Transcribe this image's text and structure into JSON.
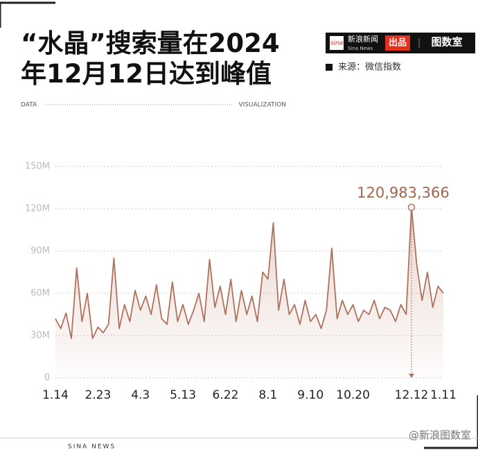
{
  "chart_data": {
    "type": "line",
    "title": "“水晶”搜索量在2024年12月12日达到峰值",
    "source": "来源：微信指数",
    "categories": [
      "1.14",
      null,
      null,
      null,
      null,
      null,
      null,
      null,
      "2.23",
      null,
      null,
      null,
      null,
      null,
      null,
      null,
      "4.3",
      null,
      null,
      null,
      null,
      null,
      null,
      null,
      "5.13",
      null,
      null,
      null,
      null,
      null,
      null,
      null,
      "6.22",
      null,
      null,
      null,
      null,
      null,
      null,
      null,
      "8.1",
      null,
      null,
      null,
      null,
      null,
      null,
      null,
      "9.10",
      null,
      null,
      null,
      null,
      null,
      null,
      null,
      "10.20",
      null,
      null,
      null,
      null,
      null,
      null,
      null,
      null,
      null,
      null,
      "12.12",
      null,
      null,
      null,
      null,
      null,
      "1.11"
    ],
    "values": [
      42,
      35,
      46,
      28,
      78,
      40,
      60,
      28,
      36,
      32,
      38,
      85,
      35,
      52,
      40,
      62,
      48,
      58,
      45,
      66,
      42,
      38,
      68,
      40,
      52,
      38,
      48,
      60,
      40,
      84,
      50,
      65,
      45,
      70,
      40,
      62,
      45,
      58,
      40,
      75,
      70,
      110,
      48,
      70,
      45,
      52,
      38,
      55,
      40,
      45,
      35,
      48,
      92,
      42,
      55,
      45,
      52,
      40,
      48,
      45,
      55,
      42,
      50,
      48,
      40,
      52,
      45,
      120.983366,
      80,
      55,
      75,
      50,
      65,
      60
    ],
    "value_labels": [
      null,
      null,
      null,
      null,
      null,
      null,
      null,
      null,
      null,
      null,
      null,
      null,
      null,
      null,
      null,
      null,
      null,
      null,
      null,
      null,
      null,
      null,
      null,
      null,
      null,
      null,
      null,
      null,
      null,
      null,
      null,
      null,
      null,
      null,
      null,
      null,
      null,
      null,
      null,
      null,
      null,
      null,
      null,
      null,
      null,
      null,
      null,
      null,
      null,
      null,
      null,
      null,
      null,
      null,
      null,
      null,
      null,
      null,
      null,
      null,
      null,
      null,
      null,
      null,
      null,
      null,
      null,
      "120,983,366",
      null,
      null,
      null,
      null,
      null,
      null
    ],
    "color": "#b0705a",
    "ylim": [
      0,
      150
    ],
    "yticks": [
      0,
      {
        "value": 30,
        "label": "30M"
      },
      {
        "value": 60,
        "label": "60M"
      },
      {
        "value": 90,
        "label": "90M"
      },
      {
        "value": 120,
        "label": "120M"
      },
      {
        "value": 150,
        "label": "150M"
      }
    ],
    "grid": true
  },
  "branding": {
    "logo_cn": "新浪新闻",
    "logo_en": "Sina News",
    "produced": "出品",
    "studio": "图数室",
    "data": "DATA",
    "visualization": "VISUALIZATION",
    "footer": "SINA NEWS",
    "watermark": "@新浪图数室"
  }
}
